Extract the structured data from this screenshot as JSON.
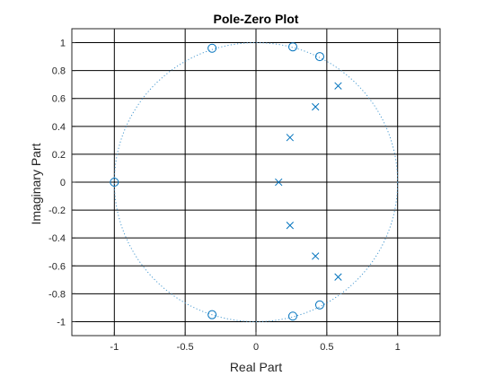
{
  "chart_data": {
    "type": "scatter",
    "title": "Pole-Zero Plot",
    "xlabel": "Real Part",
    "ylabel": "Imaginary Part",
    "xlim": [
      -1.3,
      1.3
    ],
    "ylim": [
      -1.1,
      1.1
    ],
    "xticks": [
      -1,
      -0.5,
      0,
      0.5,
      1
    ],
    "xtick_labels": [
      "-1",
      "-0.5",
      "0",
      "0.5",
      "1"
    ],
    "yticks": [
      1,
      0.8,
      0.6,
      0.4,
      0.2,
      0,
      -0.2,
      -0.4,
      -0.6,
      -0.8,
      -1
    ],
    "ytick_labels": [
      "1",
      "0.8",
      "0.6",
      "0.4",
      "0.2",
      "0",
      "-0.2",
      "-0.4",
      "-0.6",
      "-0.8",
      "-1"
    ],
    "grid": true,
    "unit_circle": true,
    "colors": {
      "marker": "#0072bd",
      "grid": "#000000",
      "unit_circle": "#4a9bd1"
    },
    "series": [
      {
        "marker": "o",
        "points": [
          [
            -1.0,
            0.0
          ],
          [
            -0.31,
            0.96
          ],
          [
            -0.31,
            -0.95
          ],
          [
            0.26,
            0.97
          ],
          [
            0.26,
            -0.96
          ],
          [
            0.45,
            0.9
          ],
          [
            0.45,
            -0.88
          ]
        ]
      },
      {
        "marker": "x",
        "points": [
          [
            0.16,
            0.0
          ],
          [
            0.24,
            0.32
          ],
          [
            0.24,
            -0.31
          ],
          [
            0.42,
            0.54
          ],
          [
            0.42,
            -0.53
          ],
          [
            0.58,
            0.69
          ],
          [
            0.58,
            -0.68
          ]
        ]
      }
    ]
  }
}
